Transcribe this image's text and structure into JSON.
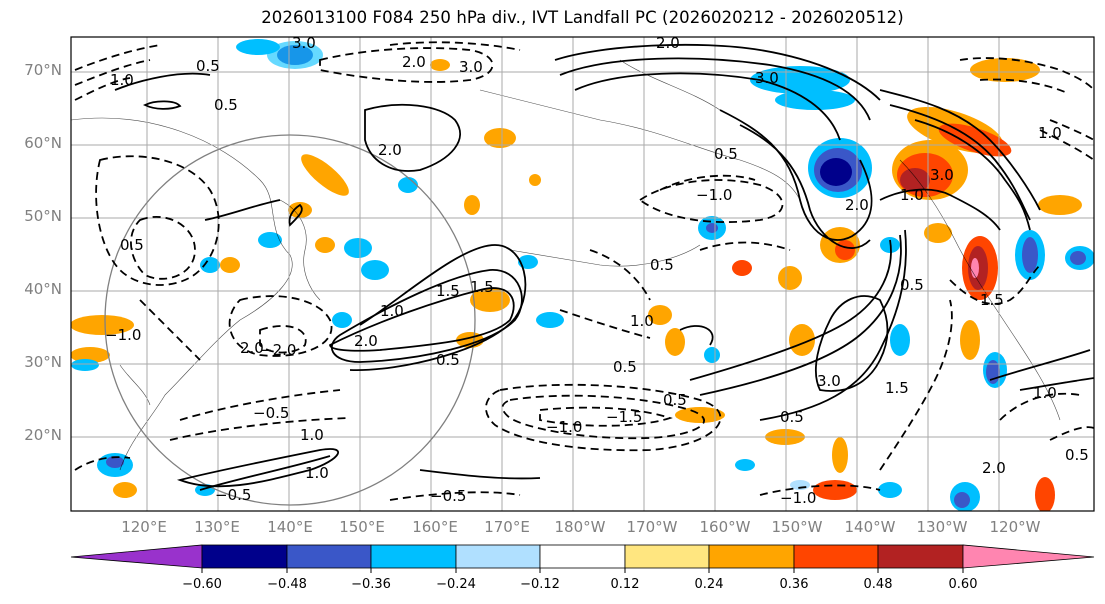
{
  "title": "2026013100 F084 250 hPa div., IVT Landfall PC (2026020212 - 2026020512)",
  "map": {
    "lat_labels": [
      "70°N",
      "60°N",
      "50°N",
      "40°N",
      "30°N",
      "20°N"
    ],
    "lon_labels": [
      "120°E",
      "130°E",
      "140°E",
      "150°E",
      "160°E",
      "170°E",
      "180°W",
      "170°W",
      "160°W",
      "150°W",
      "140°W",
      "130°W",
      "120°W"
    ],
    "contour_labels": [
      "3.0",
      "2.0",
      "0.5",
      "2.0",
      "3.0",
      "0.5",
      "3.0",
      "2.0",
      "1.0",
      "-1.0",
      "0.5",
      "1.0",
      "1.5",
      "2.0",
      "1.0",
      "2.0",
      "0.5",
      "0.5",
      "-1.5",
      "-1.0",
      "0.5",
      "0.5",
      "-1.0",
      "-0.5",
      "1.5",
      "1.0",
      "2.0",
      "1.0",
      "2.0",
      "3.0",
      "1.5",
      "-0.5",
      "1.0",
      "-1.0",
      "0.5",
      "-0.5",
      "1.0",
      "-2.0",
      "0.5",
      "1.5",
      "3.0",
      "1.0",
      "0.5",
      "0.5"
    ]
  },
  "colorbar": {
    "levels": [
      "-0.60",
      "-0.48",
      "-0.36",
      "-0.24",
      "-0.12",
      "0.12",
      "0.24",
      "0.36",
      "0.48",
      "0.60"
    ],
    "colors": [
      "#9932cc",
      "#00008b",
      "#3a57c8",
      "#00bfff",
      "#b0e0ff",
      "#ffffff",
      "#ffe680",
      "#ffa500",
      "#ff4500",
      "#b22222",
      "#ff85b0"
    ]
  }
}
